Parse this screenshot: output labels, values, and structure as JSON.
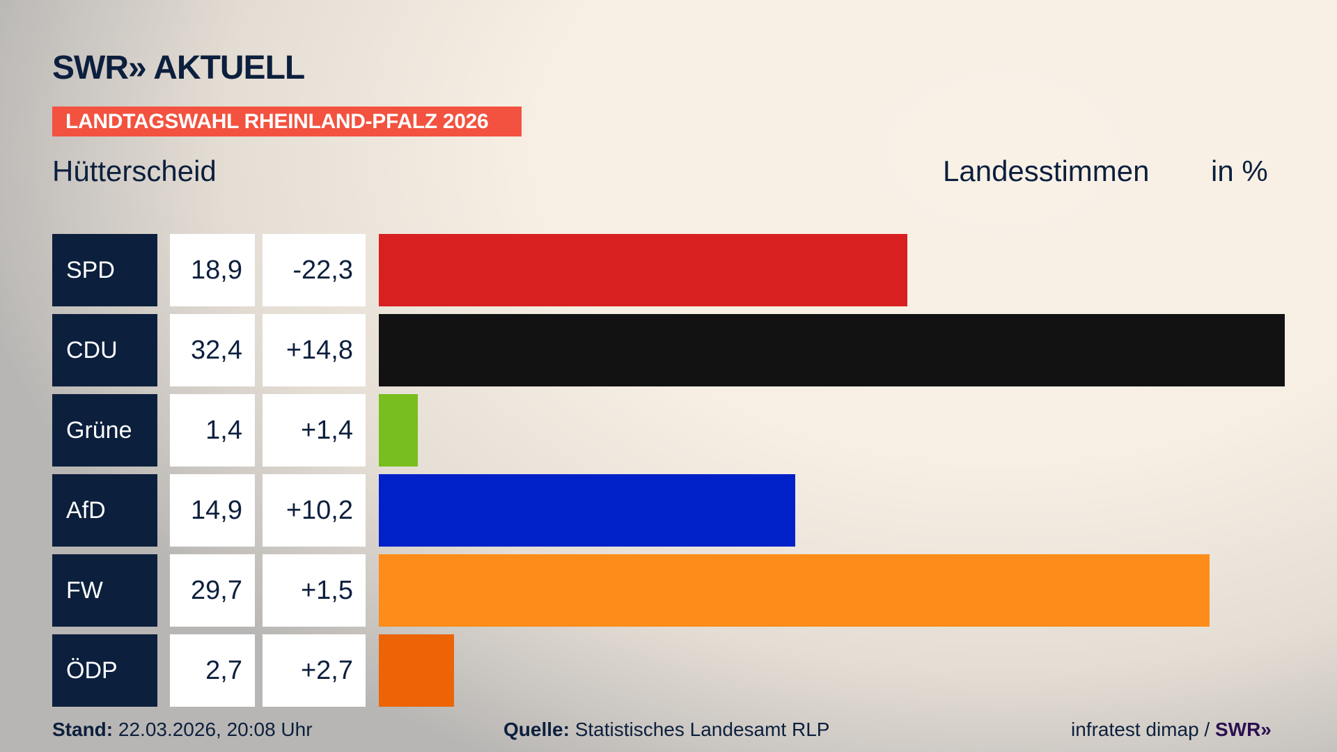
{
  "header": {
    "logo": "SWR» AKTUELL",
    "banner": "LANDTAGSWAHL RHEINLAND-PFALZ 2026",
    "place": "Hütterscheid",
    "metric": "Landesstimmen",
    "unit": "in %"
  },
  "chart_data": {
    "type": "bar",
    "orientation": "horizontal",
    "xlim": [
      0,
      32.4
    ],
    "categories": [
      "SPD",
      "CDU",
      "Grüne",
      "AfD",
      "FW",
      "ÖDP"
    ],
    "values": [
      18.9,
      32.4,
      1.4,
      14.9,
      29.7,
      2.7
    ],
    "value_labels": [
      "18,9",
      "32,4",
      "1,4",
      "14,9",
      "29,7",
      "2,7"
    ],
    "diffs": [
      "-22,3",
      "+14,8",
      "+1,4",
      "+10,2",
      "+1,5",
      "+2,7"
    ],
    "colors": [
      "#d92020",
      "#121212",
      "#78be1e",
      "#0021c8",
      "#fd8c1a",
      "#ec6406"
    ]
  },
  "footer": {
    "stand_label": "Stand:",
    "stand_value": "22.03.2026, 20:08 Uhr",
    "source_label": "Quelle:",
    "source_value": "Statistisches Landesamt RLP",
    "credit": "infratest dimap / ",
    "credit_logo": "SWR»"
  }
}
